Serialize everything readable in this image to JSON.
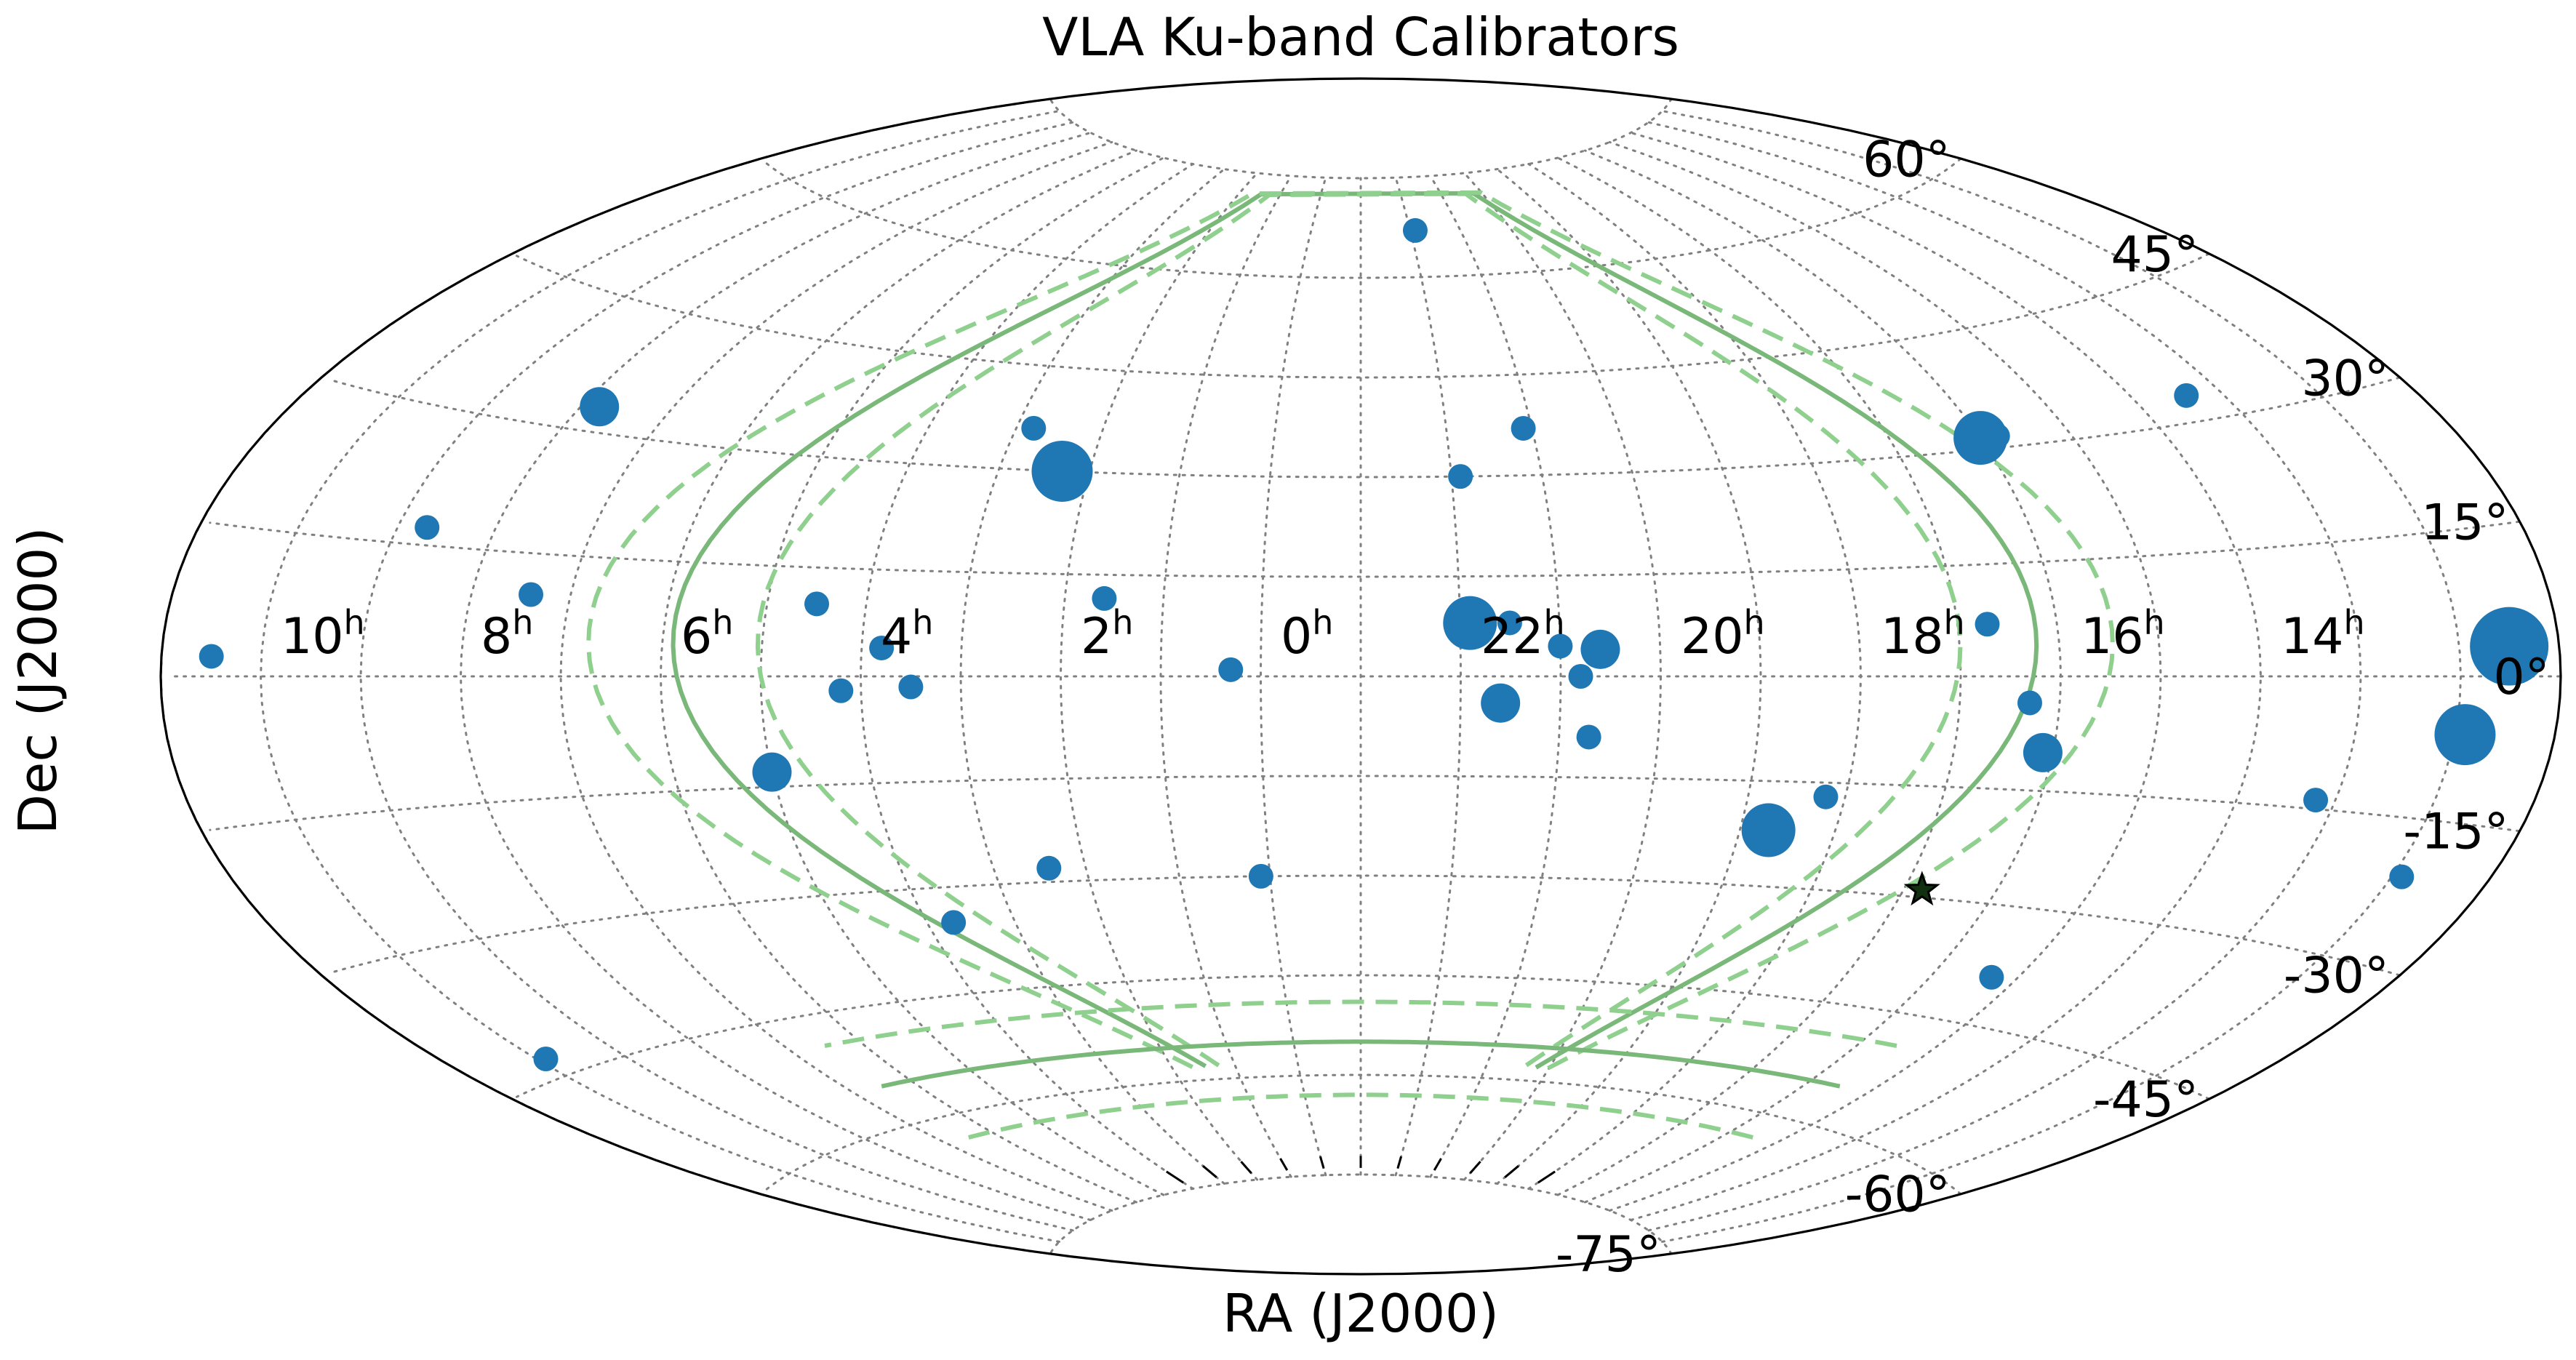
{
  "chart_data": {
    "type": "scatter",
    "projection": "aitoff",
    "title": "VLA Ku-band Calibrators",
    "xlabel": "RA (J2000)",
    "ylabel": "Dec (J2000)",
    "x_center_hours": 0,
    "ra_tick_labels": [
      {
        "ra_h": 10,
        "label": "10",
        "sup": "h"
      },
      {
        "ra_h": 8,
        "label": "8",
        "sup": "h"
      },
      {
        "ra_h": 6,
        "label": "6",
        "sup": "h"
      },
      {
        "ra_h": 4,
        "label": "4",
        "sup": "h"
      },
      {
        "ra_h": 2,
        "label": "2",
        "sup": "h"
      },
      {
        "ra_h": 0,
        "label": "0",
        "sup": "h"
      },
      {
        "ra_h": 22,
        "label": "22",
        "sup": "h"
      },
      {
        "ra_h": 20,
        "label": "20",
        "sup": "h"
      },
      {
        "ra_h": 18,
        "label": "18",
        "sup": "h"
      },
      {
        "ra_h": 16,
        "label": "16",
        "sup": "h"
      },
      {
        "ra_h": 14,
        "label": "14",
        "sup": "h"
      }
    ],
    "dec_tick_labels": [
      {
        "dec": 60,
        "label": "60°"
      },
      {
        "dec": 45,
        "label": "45°"
      },
      {
        "dec": 30,
        "label": "30°"
      },
      {
        "dec": 15,
        "label": "15°"
      },
      {
        "dec": 0,
        "label": "0°"
      },
      {
        "dec": -15,
        "label": "-15°"
      },
      {
        "dec": -30,
        "label": "-30°"
      },
      {
        "dec": -45,
        "label": "-45°"
      },
      {
        "dec": -60,
        "label": "-60°"
      },
      {
        "dec": -75,
        "label": "-75°"
      }
    ],
    "grid": true,
    "points": [
      {
        "ra_h": 11.5,
        "dec": 2,
        "size": 1
      },
      {
        "ra_h": 8.8,
        "dec": 33,
        "size": 2
      },
      {
        "ra_h": 9.7,
        "dec": 17,
        "size": 1
      },
      {
        "ra_h": 8.4,
        "dec": 10,
        "size": 1
      },
      {
        "ra_h": 10.9,
        "dec": -43,
        "size": 1
      },
      {
        "ra_h": 5.5,
        "dec": 10,
        "size": 1
      },
      {
        "ra_h": 4.8,
        "dec": 4,
        "size": 1
      },
      {
        "ra_h": 5.2,
        "dec": -2,
        "size": 1
      },
      {
        "ra_h": 4.5,
        "dec": -1.5,
        "size": 1
      },
      {
        "ra_h": 6.0,
        "dec": -13,
        "size": 2
      },
      {
        "ra_h": 3.8,
        "dec": 36,
        "size": 1
      },
      {
        "ra_h": 3.3,
        "dec": 30,
        "size": 4
      },
      {
        "ra_h": 2.6,
        "dec": 11.5,
        "size": 1
      },
      {
        "ra_h": 1.3,
        "dec": 1,
        "size": 1
      },
      {
        "ra_h": 4.7,
        "dec": -35,
        "size": 1
      },
      {
        "ra_h": 3.4,
        "dec": -28,
        "size": 1
      },
      {
        "ra_h": 1.1,
        "dec": -30,
        "size": 1
      },
      {
        "ra_h": 22.9,
        "dec": 67,
        "size": 1
      },
      {
        "ra_h": 22.1,
        "dec": 37,
        "size": 1
      },
      {
        "ra_h": 22.9,
        "dec": 30,
        "size": 1
      },
      {
        "ra_h": 22.9,
        "dec": 8,
        "size": 3
      },
      {
        "ra_h": 22.5,
        "dec": 8,
        "size": 1
      },
      {
        "ra_h": 22.0,
        "dec": 4.5,
        "size": 1
      },
      {
        "ra_h": 21.6,
        "dec": 4,
        "size": 2
      },
      {
        "ra_h": 22.6,
        "dec": -4,
        "size": 2
      },
      {
        "ra_h": 21.8,
        "dec": 0,
        "size": 1
      },
      {
        "ra_h": 21.7,
        "dec": -9,
        "size": 1
      },
      {
        "ra_h": 19.7,
        "dec": -22,
        "size": 3
      },
      {
        "ra_h": 19.2,
        "dec": -17,
        "size": 1
      },
      {
        "ra_h": 16.3,
        "dec": -39,
        "size": 1
      },
      {
        "ra_h": 17.7,
        "dec": 7,
        "size": 1
      },
      {
        "ra_h": 17.3,
        "dec": -3.5,
        "size": 1
      },
      {
        "ra_h": 17.1,
        "dec": -10,
        "size": 2
      },
      {
        "ra_h": 17.0,
        "dec": 31.5,
        "size": 3
      },
      {
        "ra_h": 16.8,
        "dec": 31.5,
        "size": 1
      },
      {
        "ra_h": 14.4,
        "dec": 33,
        "size": 1
      },
      {
        "ra_h": 14.2,
        "dec": -14,
        "size": 1
      },
      {
        "ra_h": 12.9,
        "dec": -6,
        "size": 4
      },
      {
        "ra_h": 12.5,
        "dec": 3,
        "size": 6
      },
      {
        "ra_h": 12.9,
        "dec": -21,
        "size": 1
      }
    ],
    "marker": {
      "ra_h": 17.8,
      "dec": -29,
      "shape": "star"
    },
    "curves": [
      {
        "style": "solid",
        "kind": "track",
        "offset": 0
      },
      {
        "style": "dashed",
        "kind": "track",
        "offset": -1
      },
      {
        "style": "dashed",
        "kind": "track",
        "offset": 1
      },
      {
        "style": "solid",
        "kind": "dec_limit",
        "dec": -55
      },
      {
        "style": "dashed",
        "kind": "dec_limit",
        "dec": -49
      },
      {
        "style": "dashed",
        "kind": "dec_limit",
        "dec": -63
      }
    ],
    "colors": {
      "points": "#1f77b4",
      "curves": "#79b879",
      "grid": "#808080",
      "marker": "#103010"
    }
  }
}
